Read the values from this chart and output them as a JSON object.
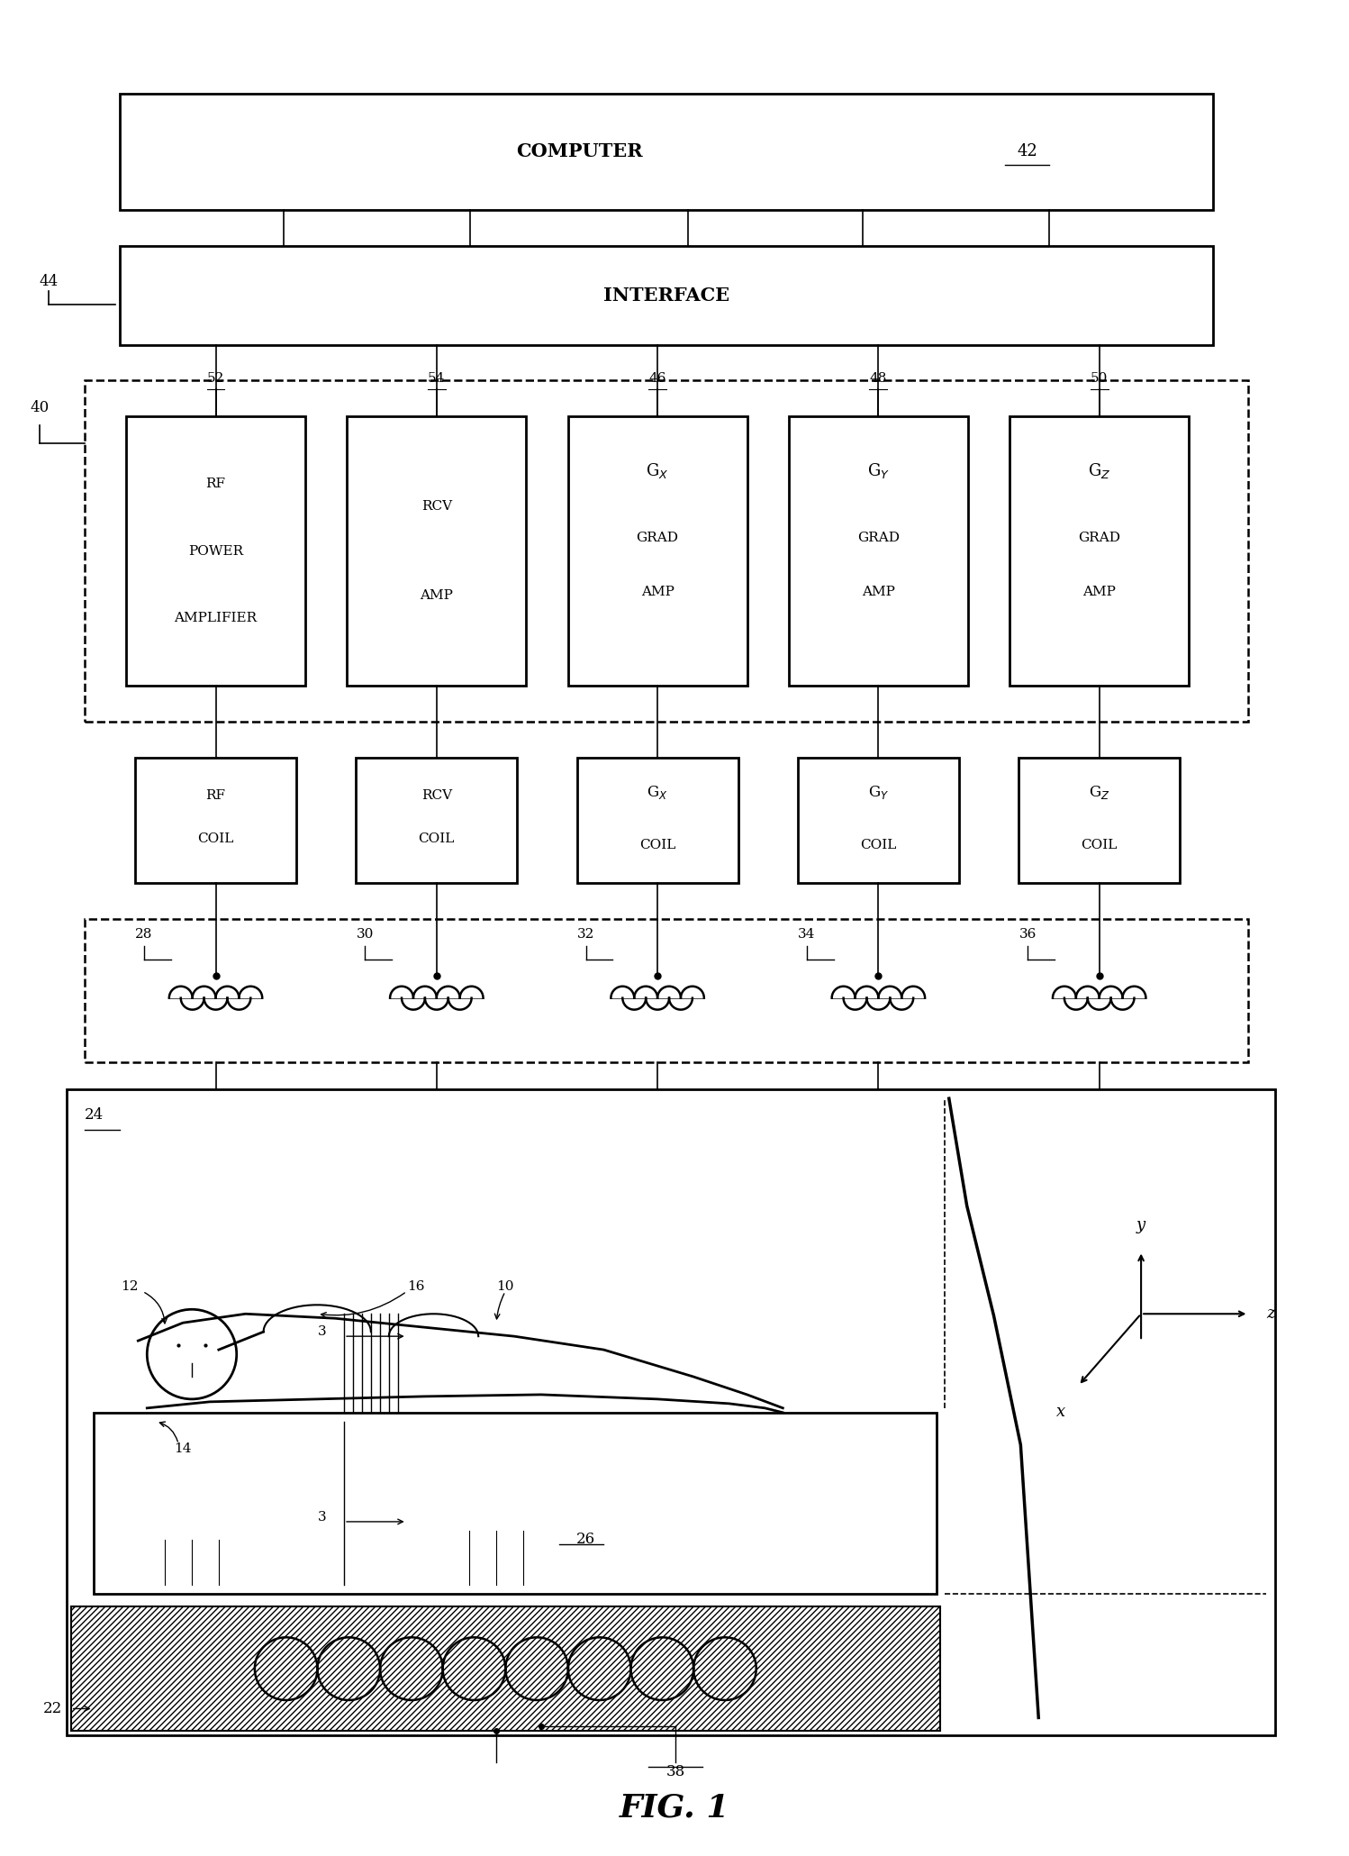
{
  "title": "FIG. 1",
  "bg_color": "#ffffff",
  "computer_label": "COMPUTER",
  "computer_ref": "42",
  "interface_label": "INTERFACE",
  "interface_ref": "44",
  "amp_ref": "40",
  "amp_boxes": [
    {
      "lines": [
        "RF",
        "POWER",
        "AMPLIFIER"
      ],
      "ref": "52",
      "sub": null
    },
    {
      "lines": [
        "RCV",
        "AMP"
      ],
      "ref": "54",
      "sub": null
    },
    {
      "lines": [
        "GRAD",
        "AMP"
      ],
      "ref": "46",
      "sub": "X"
    },
    {
      "lines": [
        "GRAD",
        "AMP"
      ],
      "ref": "48",
      "sub": "Y"
    },
    {
      "lines": [
        "GRAD",
        "AMP"
      ],
      "ref": "50",
      "sub": "Z"
    }
  ],
  "coil_boxes": [
    {
      "lines": [
        "RF",
        "COIL"
      ],
      "sub": null
    },
    {
      "lines": [
        "RCV",
        "COIL"
      ],
      "sub": null
    },
    {
      "lines": [
        "COIL"
      ],
      "sub": "X"
    },
    {
      "lines": [
        "COIL"
      ],
      "sub": "Y"
    },
    {
      "lines": [
        "COIL"
      ],
      "sub": "Z"
    }
  ],
  "inductor_refs": [
    "28",
    "30",
    "32",
    "34",
    "36"
  ],
  "mri_box_ref": "24",
  "table_ref": "26",
  "magnet_ref": "22",
  "coil_bottom_ref": "38"
}
